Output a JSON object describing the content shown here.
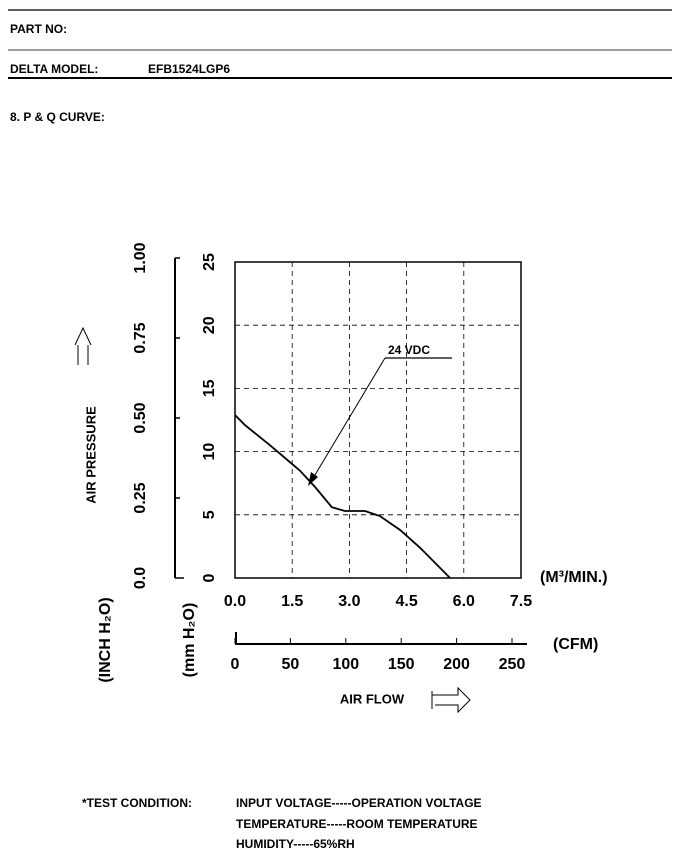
{
  "header": {
    "part_no_label": "PART NO:",
    "model_label": "DELTA MODEL:",
    "model": "EFB1524LGP6",
    "section": "8. P & Q CURVE:"
  },
  "chart_data": {
    "type": "line",
    "y_label": "AIR PRESSURE",
    "x_label": "AIR FLOW",
    "x_unit": "(M³/MIN.)",
    "x2_unit": "(CFM)",
    "y_unit": "(mm H₂O)",
    "y2_unit": "(INCH H₂O)",
    "x": [
      0,
      0.26,
      0.92,
      1.7,
      2.1,
      2.54,
      2.88,
      3.41,
      3.8,
      4.33,
      4.85,
      5.64
    ],
    "series": [
      {
        "name": "24 VDC",
        "color": "#000000",
        "values": [
          12.9,
          12.1,
          10.5,
          8.5,
          7.2,
          5.6,
          5.3,
          5.3,
          4.9,
          3.8,
          2.4,
          0
        ]
      }
    ],
    "xlim": [
      0,
      7.5
    ],
    "xticks": [
      {
        "value": 0,
        "label": "0.0"
      },
      1.5,
      {
        "value": 3,
        "label": "3.0"
      },
      4.5,
      {
        "value": 6,
        "label": "6.0"
      },
      7.5
    ],
    "x2lim": [
      0,
      258
    ],
    "x2ticks": [
      0,
      50,
      100,
      150,
      200,
      250
    ],
    "ylim": [
      0,
      25
    ],
    "yticks": [
      0,
      5,
      10,
      15,
      20,
      25
    ],
    "y2lim": [
      0,
      1.0
    ],
    "y2ticks": [
      {
        "value": 0,
        "label": "0.0"
      },
      0.25,
      {
        "value": 0.5,
        "label": "0.50"
      },
      0.75,
      {
        "value": 1,
        "label": "1.00"
      }
    ],
    "grid": true
  },
  "test_condition": {
    "label": "*TEST CONDITION:",
    "lines": [
      "INPUT VOLTAGE-----OPERATION VOLTAGE",
      "TEMPERATURE-----ROOM TEMPERATURE",
      "HUMIDITY-----65%RH"
    ]
  }
}
